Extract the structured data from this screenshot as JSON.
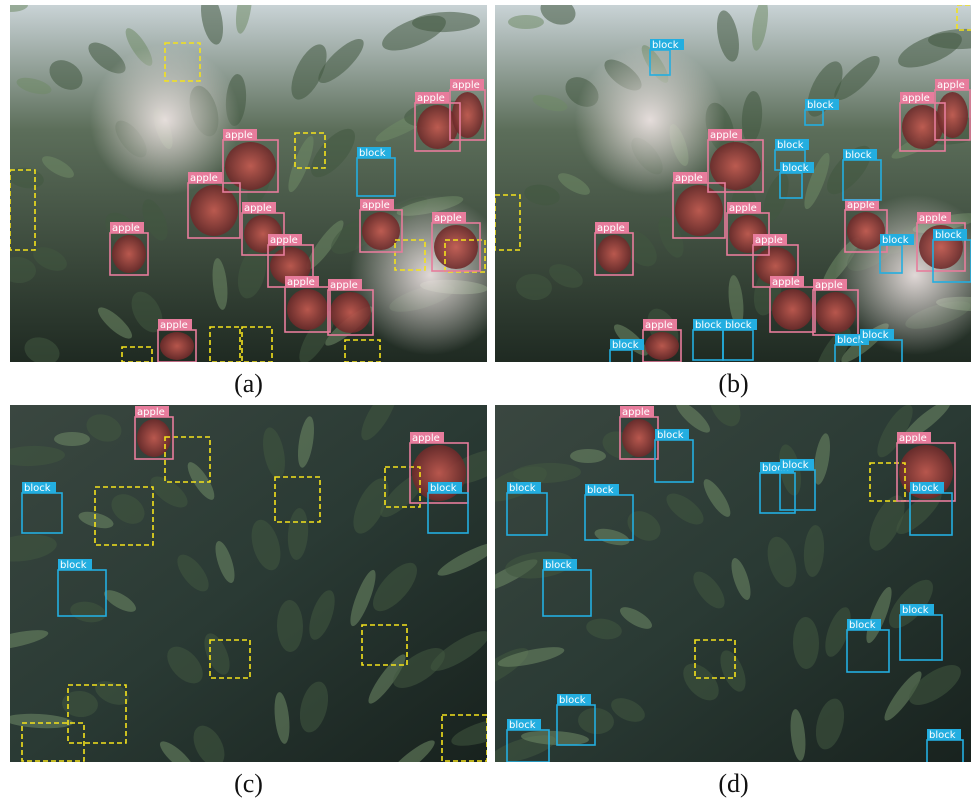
{
  "panels": [
    {
      "caption": "(a)",
      "detections": [
        "apple",
        "apple",
        "apple",
        "apple",
        "apple",
        "apple",
        "apple",
        "apple",
        "apple",
        "apple",
        "apple",
        "apple",
        "block"
      ]
    },
    {
      "caption": "(b)",
      "detections": [
        "apple",
        "apple",
        "apple",
        "apple",
        "apple",
        "apple",
        "apple",
        "apple",
        "apple",
        "apple",
        "apple",
        "apple",
        "block",
        "block",
        "block",
        "block",
        "block",
        "block",
        "block",
        "block",
        "block",
        "block",
        "block",
        "block"
      ]
    },
    {
      "caption": "(c)",
      "detections": [
        "apple",
        "apple",
        "block",
        "block",
        "block"
      ]
    },
    {
      "caption": "(d)",
      "detections": [
        "apple",
        "apple",
        "block",
        "block",
        "block",
        "block",
        "block",
        "block",
        "block",
        "block",
        "block",
        "block",
        "block",
        "block"
      ]
    }
  ]
}
